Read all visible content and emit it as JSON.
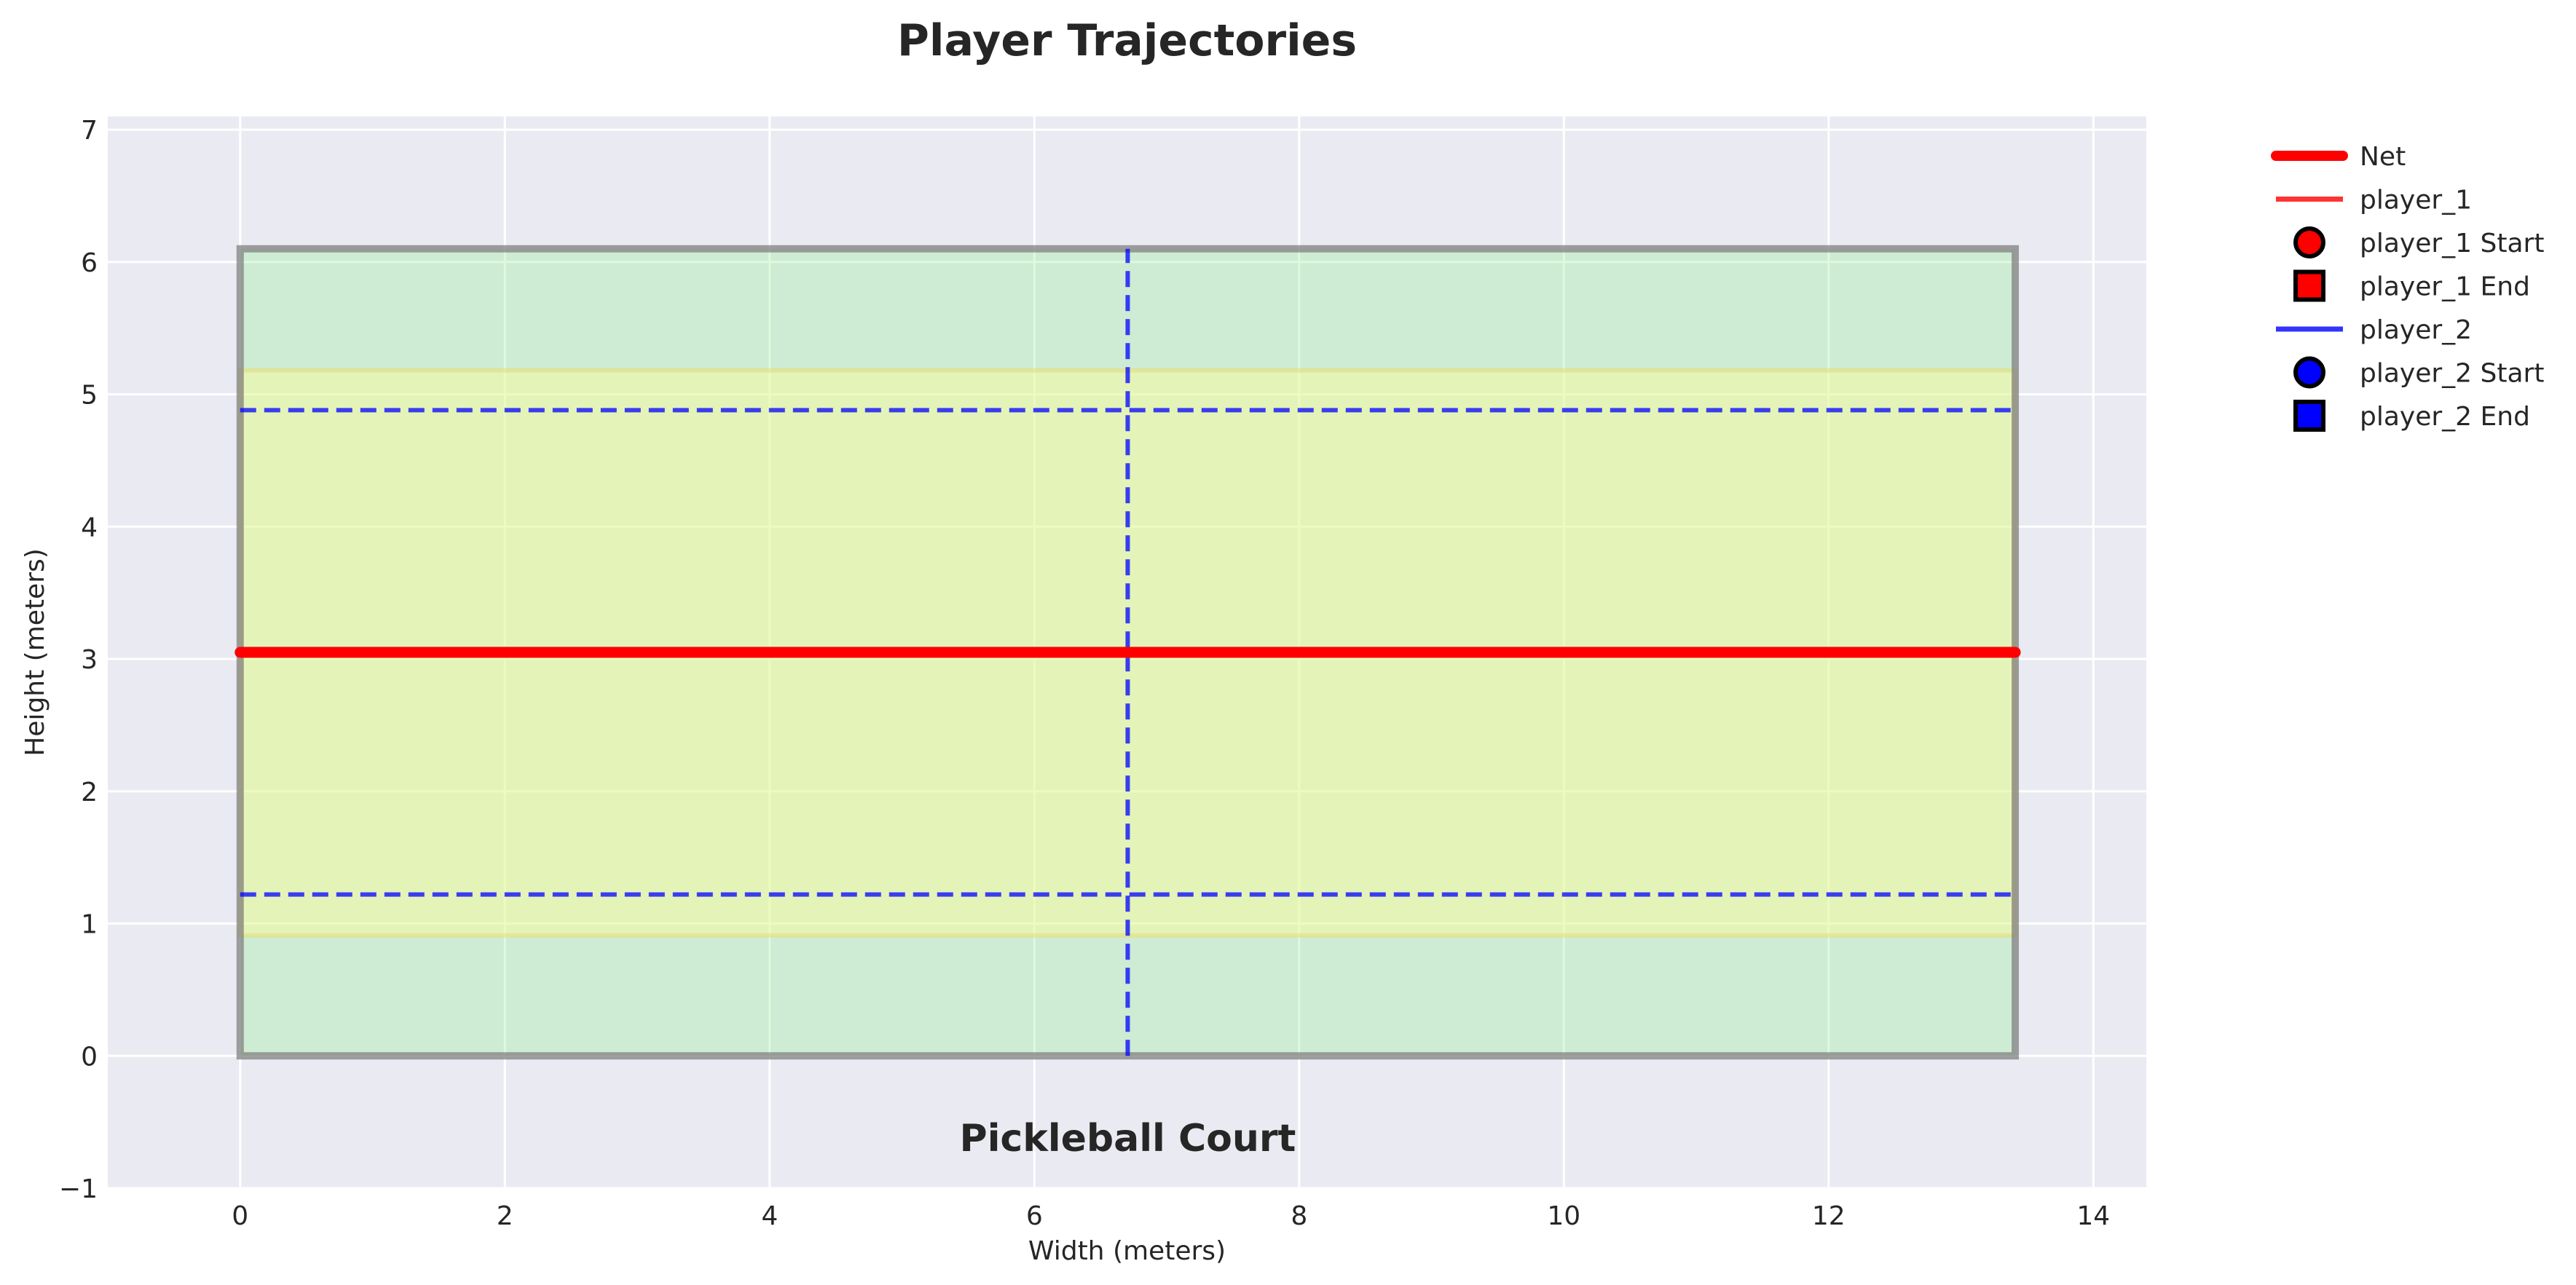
{
  "chart_data": {
    "type": "line",
    "title": "Player Trajectories",
    "xlabel": "Width (meters)",
    "ylabel": "Height (meters)",
    "xlim": [
      -1,
      14.4
    ],
    "ylim": [
      -1,
      7.1
    ],
    "x_ticks": [
      0,
      2,
      4,
      6,
      8,
      10,
      12,
      14
    ],
    "y_ticks": [
      -1,
      0,
      1,
      2,
      3,
      4,
      5,
      6,
      7
    ],
    "grid": true,
    "background_color": "#EAEAF2",
    "court": {
      "label": "Pickleball Court",
      "outer": {
        "x": [
          0,
          13.41
        ],
        "y": [
          0,
          6.1
        ],
        "fill": "#90EE90",
        "border": "#808080"
      },
      "kitchen": {
        "x": [
          0,
          13.41
        ],
        "y": [
          0.91,
          5.18
        ],
        "fill": "#FFFF99"
      },
      "net": {
        "y": 3.05,
        "x": [
          0,
          13.41
        ],
        "color": "#FF0000"
      },
      "dashed_lines": [
        {
          "orientation": "horizontal",
          "value": 4.88,
          "range": [
            0,
            13.41
          ]
        },
        {
          "orientation": "horizontal",
          "value": 1.22,
          "range": [
            0,
            13.41
          ]
        },
        {
          "orientation": "vertical",
          "value": 6.705,
          "range": [
            0,
            6.1
          ]
        }
      ],
      "dashed_color": "#0000FF"
    },
    "legend": {
      "position": "outside-top-right",
      "entries": [
        {
          "label": "Net",
          "marker": "thick-line",
          "color": "#FF0000"
        },
        {
          "label": "player_1",
          "marker": "line",
          "color": "#FF0000"
        },
        {
          "label": "player_1 Start",
          "marker": "circle",
          "color": "#FF0000"
        },
        {
          "label": "player_1 End",
          "marker": "square",
          "color": "#FF0000"
        },
        {
          "label": "player_2",
          "marker": "line",
          "color": "#0000FF"
        },
        {
          "label": "player_2 Start",
          "marker": "circle",
          "color": "#0000FF"
        },
        {
          "label": "player_2 End",
          "marker": "square",
          "color": "#0000FF"
        }
      ]
    },
    "series": [
      {
        "name": "player_1",
        "x": [],
        "y": []
      },
      {
        "name": "player_2",
        "x": [],
        "y": []
      }
    ]
  }
}
